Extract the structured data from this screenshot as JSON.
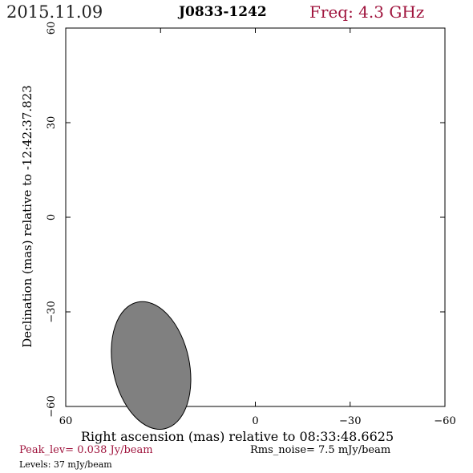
{
  "header": {
    "date": "2015.11.09",
    "source": "J0833-1242",
    "freq": "Freq: 4.3 GHz"
  },
  "footer": {
    "peak": "Peak_lev=  0.038 Jy/beam",
    "rms": "Rms_noise=  7.5 mJy/beam",
    "levels": "Levels:  37 mJy/beam"
  },
  "colors": {
    "accent": "#a0153e",
    "beam_fill": "#808080",
    "beam_stroke": "#000000"
  },
  "chart_data": {
    "type": "scatter",
    "title": "J0833-1242",
    "xlabel": "Right ascension (mas) relative to 08:33:48.6625",
    "ylabel": "Declination (mas) relative to -12:42:37.823",
    "xlim": [
      60,
      -60
    ],
    "ylim": [
      -60,
      60
    ],
    "x_ticks": [
      60,
      30,
      0,
      -30,
      -60
    ],
    "y_ticks": [
      -60,
      -30,
      0,
      30,
      60
    ],
    "x_tick_labels": [
      "60",
      "30",
      "0",
      "−30",
      "−60"
    ],
    "y_tick_labels": [
      "−60",
      "−30",
      "0",
      "30",
      "60"
    ],
    "grid": false,
    "beam": {
      "x": 33,
      "y": -47,
      "major": 20.5,
      "minor": 12.1,
      "pa": -12
    }
  }
}
